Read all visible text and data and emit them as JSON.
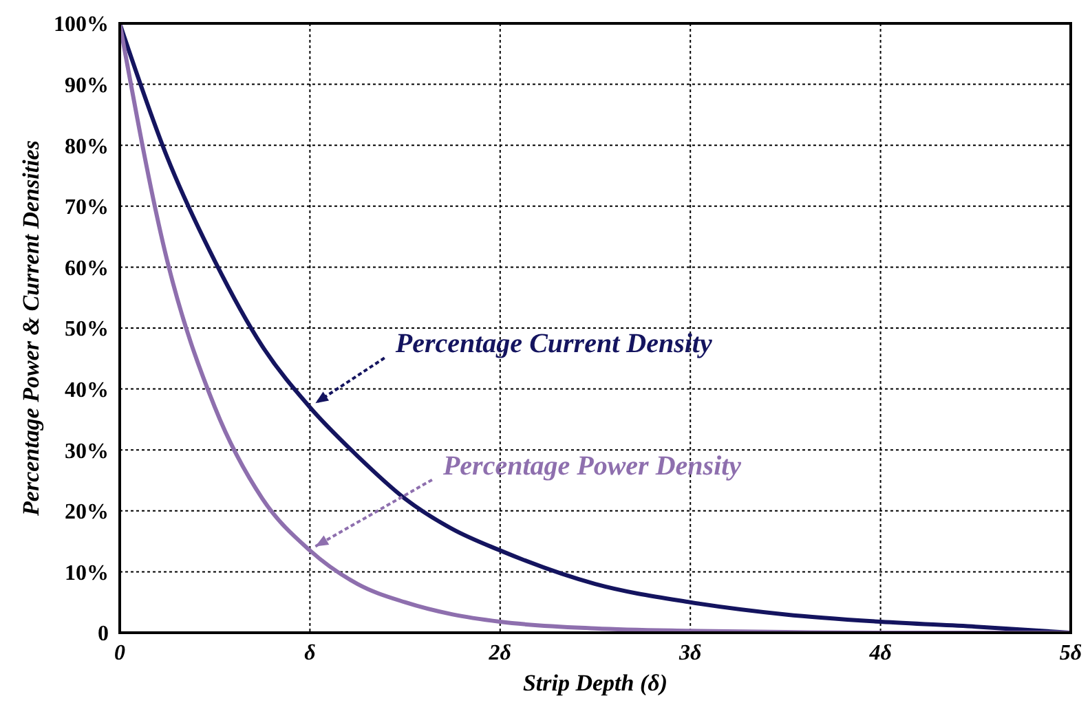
{
  "chart_data": {
    "type": "line",
    "xlabel": "Strip Depth (δ)",
    "ylabel": "Percentage Power & Current Densities",
    "xlim": [
      0,
      5
    ],
    "xticks": [
      {
        "value": 0,
        "label": "0"
      },
      {
        "value": 1,
        "label": "δ"
      },
      {
        "value": 2,
        "label": "2δ"
      },
      {
        "value": 3,
        "label": "3δ"
      },
      {
        "value": 4,
        "label": "4δ"
      },
      {
        "value": 5,
        "label": "5δ"
      }
    ],
    "ylim": [
      0,
      100
    ],
    "yticks": [
      {
        "value": 0,
        "label": "0"
      },
      {
        "value": 10,
        "label": "10%"
      },
      {
        "value": 20,
        "label": "20%"
      },
      {
        "value": 30,
        "label": "30%"
      },
      {
        "value": 40,
        "label": "40%"
      },
      {
        "value": 50,
        "label": "50%"
      },
      {
        "value": 60,
        "label": "60%"
      },
      {
        "value": 70,
        "label": "70%"
      },
      {
        "value": 80,
        "label": "80%"
      },
      {
        "value": 90,
        "label": "90%"
      },
      {
        "value": 100,
        "label": "100%"
      }
    ],
    "grid": true,
    "marker": "none",
    "line_style": "solid",
    "series": [
      {
        "name": "Percentage Current Density",
        "color": "#14145f",
        "x": [
          0,
          0.25,
          0.5,
          0.75,
          1,
          1.25,
          1.5,
          1.75,
          2,
          2.5,
          3,
          3.5,
          4,
          4.5,
          5
        ],
        "values": [
          100,
          78,
          61,
          47,
          37,
          29,
          22,
          17,
          13.5,
          8,
          5,
          3,
          1.8,
          1,
          0
        ]
      },
      {
        "name": "Percentage Power Density",
        "color": "#8e6fae",
        "x": [
          0,
          0.25,
          0.5,
          0.75,
          1,
          1.25,
          1.5,
          1.75,
          2,
          2.5,
          3,
          3.5,
          4,
          5
        ],
        "values": [
          100,
          61,
          37,
          22,
          13.5,
          8,
          5,
          3,
          1.8,
          0.7,
          0.3,
          0.1,
          0,
          0
        ]
      }
    ]
  }
}
